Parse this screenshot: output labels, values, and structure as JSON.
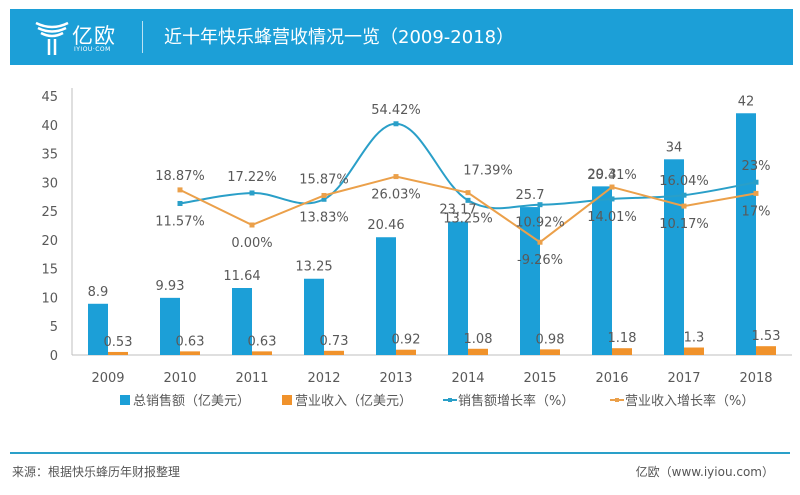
{
  "header": {
    "brand": "亿欧",
    "brand_sub": "IYIOU·COM",
    "title": "近十年快乐蜂营收情况一览（2009-2018）"
  },
  "footer": {
    "source": "来源：根据快乐蜂历年财报整理",
    "credit": "亿欧（www.iyiou.com）"
  },
  "colors": {
    "header_bg": "#1c9fd7",
    "bar_sales": "#1c9fd7",
    "bar_revenue": "#f0922b",
    "line_sales_growth": "#2a9fc8",
    "line_revenue_growth": "#eba04a"
  },
  "chart_data": {
    "type": "bar+line",
    "title": "近十年快乐蜂营收情况一览（2009-2018）",
    "categories": [
      "2009",
      "2010",
      "2011",
      "2012",
      "2013",
      "2014",
      "2015",
      "2016",
      "2017",
      "2018"
    ],
    "y_axis": {
      "ylim": [
        0,
        45
      ],
      "ticks": [
        0,
        5,
        10,
        15,
        20,
        25,
        30,
        35,
        40,
        45
      ]
    },
    "secondary_axis_hidden": true,
    "legend_position": "bottom",
    "grid": false,
    "series": [
      {
        "name": "总销售额（亿美元）",
        "type": "bar",
        "values": [
          8.9,
          9.93,
          11.64,
          13.25,
          20.46,
          23.17,
          25.7,
          29.3,
          34,
          42
        ],
        "labels": [
          "8.9",
          "9.93",
          "11.64",
          "13.25",
          "20.46",
          "23.17",
          "25.7",
          "29.3",
          "34",
          "42"
        ]
      },
      {
        "name": "营业收入（亿美元）",
        "type": "bar",
        "values": [
          0.53,
          0.63,
          0.63,
          0.73,
          0.92,
          1.08,
          0.98,
          1.18,
          1.3,
          1.53
        ],
        "labels": [
          "0.53",
          "0.63",
          "0.63",
          "0.73",
          "0.92",
          "1.08",
          "0.98",
          "1.18",
          "1.3",
          "1.53"
        ]
      },
      {
        "name": "销售额增长率（%）",
        "type": "line",
        "smooth": true,
        "values": [
          null,
          11.57,
          17.22,
          13.83,
          54.42,
          13.25,
          10.92,
          14.01,
          16.04,
          23
        ],
        "labels": [
          "",
          "11.57%",
          "17.22%",
          "13.83%",
          "54.42%",
          "13.25%",
          "10.92%",
          "14.01%",
          "16.04%",
          "23%"
        ]
      },
      {
        "name": "营业收入增长率（%）",
        "type": "line",
        "values": [
          null,
          18.87,
          0,
          15.87,
          26.03,
          17.39,
          -9.26,
          20.41,
          10.17,
          17
        ],
        "labels": [
          "",
          "18.87%",
          "0.00%",
          "15.87%",
          "26.03%",
          "17.39%",
          "-9.26%",
          "20.41%",
          "10.17%",
          "17%"
        ]
      }
    ]
  }
}
